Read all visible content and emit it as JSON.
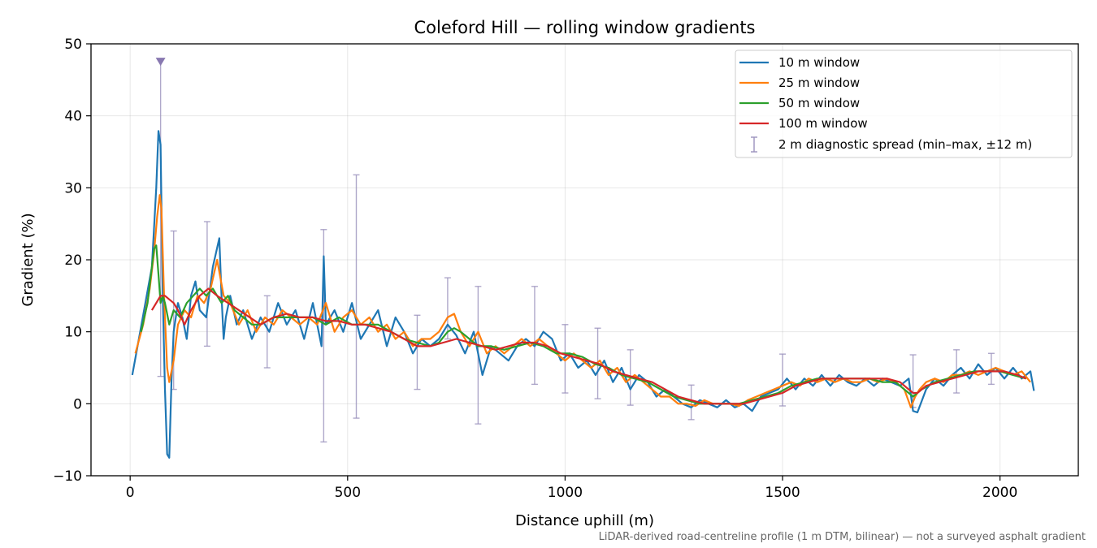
{
  "chart_data": {
    "type": "line",
    "title": "Coleford Hill — rolling window gradients",
    "xlabel": "Distance uphill (m)",
    "ylabel": "Gradient (%)",
    "xlim": [
      -90,
      2180
    ],
    "ylim": [
      -10,
      50
    ],
    "xticks": [
      0,
      500,
      1000,
      1500,
      2000
    ],
    "yticks": [
      -10,
      0,
      10,
      20,
      30,
      40,
      50
    ],
    "xtick_labels": [
      "0",
      "500",
      "1000",
      "1500",
      "2000"
    ],
    "ytick_labels": [
      "−10",
      "0",
      "10",
      "20",
      "30",
      "40",
      "50"
    ],
    "grid": true,
    "legend_position": "top-right",
    "footnote": "LiDAR-derived road-centreline profile (1 m DTM, bilinear) — not a surveyed asphalt gradient",
    "series": [
      {
        "name": "10 m window",
        "color": "#1f77b4",
        "x": [
          5,
          20,
          35,
          50,
          60,
          65,
          70,
          75,
          80,
          85,
          90,
          95,
          100,
          110,
          120,
          130,
          140,
          150,
          160,
          175,
          190,
          205,
          210,
          215,
          220,
          230,
          245,
          260,
          280,
          300,
          320,
          340,
          360,
          380,
          400,
          420,
          440,
          445,
          450,
          470,
          490,
          510,
          530,
          550,
          570,
          590,
          610,
          630,
          650,
          670,
          690,
          710,
          730,
          750,
          770,
          790,
          810,
          830,
          850,
          870,
          890,
          910,
          930,
          950,
          970,
          990,
          1010,
          1030,
          1050,
          1070,
          1090,
          1110,
          1130,
          1150,
          1170,
          1190,
          1210,
          1230,
          1250,
          1270,
          1290,
          1310,
          1330,
          1350,
          1370,
          1390,
          1410,
          1430,
          1450,
          1470,
          1490,
          1510,
          1530,
          1550,
          1570,
          1590,
          1610,
          1630,
          1650,
          1670,
          1690,
          1710,
          1730,
          1750,
          1770,
          1790,
          1800,
          1810,
          1830,
          1850,
          1870,
          1890,
          1910,
          1930,
          1950,
          1970,
          1990,
          2010,
          2030,
          2050,
          2070,
          2078
        ],
        "y": [
          4,
          9,
          14,
          19,
          30,
          37.9,
          36,
          15,
          2,
          -7,
          -7.5,
          3,
          10,
          14,
          12,
          9,
          15,
          17,
          13,
          12,
          19,
          23,
          15,
          9,
          12,
          15,
          11,
          13,
          9,
          12,
          10,
          14,
          11,
          13,
          9,
          14,
          8,
          20.5,
          11,
          13,
          10,
          14,
          9,
          11,
          13,
          8,
          12,
          10,
          7,
          9,
          8,
          9,
          11,
          9.5,
          7,
          10,
          4,
          8,
          7,
          6,
          8,
          9,
          8,
          10,
          9,
          6,
          7,
          5,
          6,
          4,
          6,
          3,
          5,
          2,
          4,
          3,
          1,
          2,
          1,
          0,
          -0.5,
          0.5,
          0,
          -0.5,
          0.5,
          -0.5,
          0,
          -1,
          1,
          1.5,
          2,
          3.5,
          2,
          3.5,
          2.5,
          4,
          2.5,
          4,
          3,
          2.5,
          3.5,
          2.5,
          3.5,
          3,
          2.5,
          3.5,
          -1,
          -1.2,
          2,
          3.5,
          2.5,
          4,
          5,
          3.5,
          5.5,
          4,
          5,
          3.5,
          5,
          3.5,
          4.5,
          1.8
        ]
      },
      {
        "name": "25 m window",
        "color": "#ff7f0e",
        "x": [
          12,
          30,
          45,
          55,
          62,
          68,
          72,
          78,
          85,
          90,
          100,
          110,
          125,
          140,
          155,
          170,
          185,
          200,
          215,
          230,
          250,
          270,
          290,
          310,
          330,
          350,
          370,
          390,
          410,
          430,
          450,
          470,
          490,
          510,
          530,
          550,
          570,
          590,
          610,
          630,
          650,
          670,
          690,
          710,
          730,
          745,
          760,
          780,
          800,
          820,
          840,
          860,
          880,
          900,
          920,
          940,
          960,
          980,
          1000,
          1020,
          1040,
          1060,
          1080,
          1100,
          1120,
          1140,
          1160,
          1180,
          1200,
          1220,
          1240,
          1260,
          1280,
          1300,
          1320,
          1340,
          1360,
          1380,
          1400,
          1420,
          1440,
          1460,
          1480,
          1500,
          1520,
          1540,
          1560,
          1580,
          1600,
          1620,
          1640,
          1660,
          1680,
          1700,
          1720,
          1740,
          1760,
          1780,
          1795,
          1805,
          1815,
          1830,
          1850,
          1870,
          1890,
          1910,
          1930,
          1950,
          1970,
          1990,
          2010,
          2030,
          2050,
          2070
        ],
        "y": [
          7,
          11,
          16,
          21,
          26,
          29,
          27,
          15,
          5,
          3,
          6,
          11,
          13,
          12,
          15,
          14,
          16,
          20,
          15,
          14,
          11,
          13,
          10,
          12,
          11,
          13,
          12,
          11,
          12,
          11,
          14,
          10,
          12,
          13,
          11,
          12,
          10,
          11,
          9,
          10,
          8,
          9,
          9,
          10,
          12,
          12.5,
          10,
          8,
          10,
          7,
          8,
          7,
          8,
          9,
          8,
          9,
          8,
          7,
          6,
          7,
          6,
          5,
          6,
          4,
          5,
          3,
          4,
          3,
          2,
          1,
          1,
          0,
          0,
          -0.3,
          0.5,
          0,
          0,
          0,
          -0.3,
          0.5,
          1,
          1.5,
          2,
          2.5,
          3,
          2.5,
          3.5,
          3,
          3.5,
          3,
          3.5,
          3,
          3,
          3.5,
          3,
          3.5,
          3,
          2,
          -0.5,
          1,
          2,
          3,
          3.5,
          3,
          4,
          4,
          4.5,
          4,
          4.5,
          5,
          4.5,
          4,
          4.5,
          3
        ]
      },
      {
        "name": "50 m window",
        "color": "#2ca02c",
        "x": [
          25,
          40,
          50,
          55,
          60,
          65,
          70,
          75,
          80,
          90,
          100,
          115,
          130,
          145,
          160,
          175,
          190,
          200,
          210,
          225,
          240,
          260,
          280,
          300,
          330,
          360,
          390,
          420,
          450,
          480,
          510,
          540,
          570,
          600,
          630,
          660,
          690,
          710,
          730,
          745,
          760,
          780,
          800,
          830,
          860,
          890,
          920,
          950,
          980,
          1010,
          1040,
          1070,
          1100,
          1130,
          1160,
          1190,
          1220,
          1250,
          1280,
          1310,
          1340,
          1370,
          1400,
          1430,
          1460,
          1490,
          1520,
          1550,
          1580,
          1610,
          1640,
          1670,
          1700,
          1730,
          1760,
          1780,
          1800,
          1820,
          1850,
          1880,
          1910,
          1940,
          1970,
          2000,
          2030,
          2060
        ],
        "y": [
          10,
          14,
          19,
          21.5,
          22,
          18,
          14,
          15,
          14,
          11,
          13,
          12,
          14,
          15,
          16,
          15,
          16,
          15,
          14,
          15,
          13,
          12,
          11,
          11,
          12,
          12,
          12,
          12,
          11,
          12,
          11,
          11,
          11,
          10,
          9,
          8.5,
          8,
          8.5,
          10,
          10.5,
          10,
          9,
          8,
          8,
          7.5,
          8,
          8.5,
          8,
          7,
          7,
          6.5,
          5.5,
          5,
          4,
          3.5,
          3,
          2,
          1,
          0.5,
          0,
          0,
          0,
          0,
          0.5,
          1,
          1.5,
          2.5,
          3,
          3.5,
          3.5,
          3.5,
          3.5,
          3.5,
          3,
          3,
          2,
          1,
          2,
          3,
          3.5,
          4,
          4.5,
          4.5,
          4.5,
          4,
          3.5
        ]
      },
      {
        "name": "100 m window",
        "color": "#d62728",
        "x": [
          50,
          60,
          70,
          80,
          90,
          100,
          110,
          125,
          140,
          160,
          180,
          200,
          225,
          250,
          275,
          300,
          330,
          360,
          390,
          420,
          450,
          480,
          510,
          540,
          570,
          600,
          630,
          660,
          690,
          720,
          750,
          780,
          810,
          840,
          870,
          900,
          930,
          960,
          990,
          1020,
          1050,
          1080,
          1110,
          1140,
          1170,
          1200,
          1230,
          1260,
          1290,
          1320,
          1350,
          1380,
          1410,
          1440,
          1470,
          1500,
          1530,
          1560,
          1590,
          1620,
          1650,
          1680,
          1710,
          1740,
          1770,
          1790,
          1800,
          1810,
          1830,
          1860,
          1890,
          1920,
          1950,
          1980,
          2010,
          2040,
          2060
        ],
        "y": [
          13,
          14,
          15,
          15,
          14.5,
          14,
          13,
          11,
          13,
          15,
          16,
          15,
          14,
          13,
          12,
          11,
          12,
          12.5,
          12,
          12,
          11.5,
          11.5,
          11,
          11,
          10.5,
          10,
          9,
          8,
          8,
          8.5,
          9,
          8.5,
          8,
          7.5,
          8,
          8.5,
          8.5,
          8,
          7,
          6.5,
          6,
          5.5,
          4.5,
          4,
          3.5,
          3,
          2,
          1,
          0.5,
          0,
          0,
          0,
          0,
          0.5,
          1,
          1.5,
          2.5,
          3,
          3.5,
          3.5,
          3.5,
          3.5,
          3.5,
          3.5,
          3,
          2,
          1.5,
          1.5,
          2.5,
          3,
          3.5,
          4,
          4.5,
          4.5,
          4.5,
          4,
          3.5
        ]
      }
    ],
    "error_series": {
      "name": "2 m diagnostic spread (min–max, ±12 m)",
      "color": "#9b92bd",
      "points": [
        {
          "x": 70,
          "low": 3.8,
          "high": 47.5,
          "clipped_marker": true
        },
        {
          "x": 100,
          "low": 2,
          "high": 24
        },
        {
          "x": 177,
          "low": 8,
          "high": 25.3
        },
        {
          "x": 315,
          "low": 5,
          "high": 15
        },
        {
          "x": 445,
          "low": -5.3,
          "high": 24.2
        },
        {
          "x": 520,
          "low": -2,
          "high": 31.8
        },
        {
          "x": 660,
          "low": 2,
          "high": 12.3
        },
        {
          "x": 730,
          "low": 9,
          "high": 17.5
        },
        {
          "x": 800,
          "low": -2.8,
          "high": 16.3
        },
        {
          "x": 930,
          "low": 2.7,
          "high": 16.3
        },
        {
          "x": 1000,
          "low": 1.5,
          "high": 11
        },
        {
          "x": 1075,
          "low": 0.7,
          "high": 10.5
        },
        {
          "x": 1150,
          "low": -0.2,
          "high": 7.5
        },
        {
          "x": 1290,
          "low": -2.2,
          "high": 2.6
        },
        {
          "x": 1500,
          "low": -0.3,
          "high": 6.9
        },
        {
          "x": 1800,
          "low": -0.5,
          "high": 6.8
        },
        {
          "x": 1900,
          "low": 1.5,
          "high": 7.5
        },
        {
          "x": 1980,
          "low": 2.7,
          "high": 7
        }
      ]
    }
  }
}
